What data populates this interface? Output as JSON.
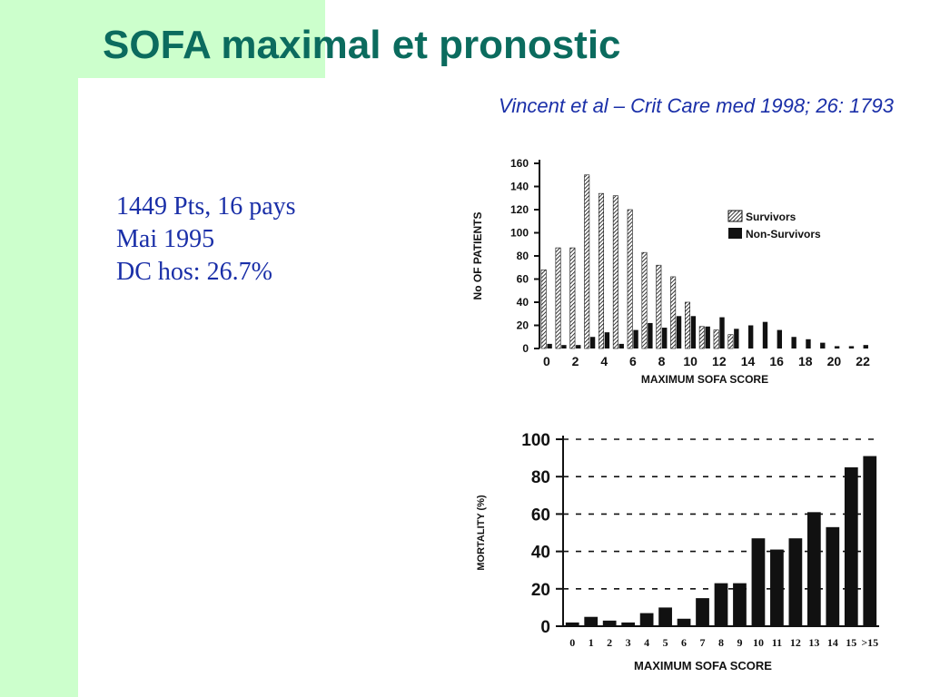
{
  "slide": {
    "title": "SOFA maximal et pronostic",
    "citation": "Vincent et al – Crit Care med 1998; 26: 1793",
    "facts": [
      "1449 Pts, 16 pays",
      "Mai 1995",
      "DC hos: 26.7%"
    ],
    "colors": {
      "background_green": "#ccffcc",
      "title": "#0b6b5e",
      "text_blue": "#1a2fa8",
      "bars": "#111111"
    }
  },
  "chart_data": [
    {
      "type": "bar",
      "title": "",
      "xlabel": "MAXIMUM SOFA SCORE",
      "ylabel": "No OF PATIENTS",
      "x": [
        0,
        1,
        2,
        3,
        4,
        5,
        6,
        7,
        8,
        9,
        10,
        11,
        12,
        13,
        14,
        15,
        16,
        17,
        18,
        19,
        20,
        21,
        22
      ],
      "x_tick_labels": [
        "0",
        "2",
        "4",
        "6",
        "8",
        "10",
        "12",
        "14",
        "16",
        "18",
        "20",
        "22"
      ],
      "x_tick_values": [
        0,
        2,
        4,
        6,
        8,
        10,
        12,
        14,
        16,
        18,
        20,
        22
      ],
      "y_ticks": [
        0,
        20,
        40,
        60,
        80,
        100,
        120,
        140,
        160
      ],
      "ylim": [
        0,
        160
      ],
      "grid": false,
      "legend": "top-right",
      "series": [
        {
          "name": "Survivors",
          "pattern": "hatched",
          "values": [
            68,
            87,
            87,
            150,
            134,
            132,
            120,
            83,
            72,
            62,
            40,
            19,
            16,
            12,
            0,
            0,
            0,
            0,
            0,
            0,
            0,
            0,
            0
          ]
        },
        {
          "name": "Non-Survivors",
          "pattern": "solid",
          "values": [
            4,
            3,
            3,
            10,
            14,
            4,
            16,
            22,
            18,
            28,
            28,
            19,
            27,
            17,
            20,
            23,
            16,
            10,
            8,
            5,
            2,
            2,
            3
          ]
        }
      ]
    },
    {
      "type": "bar",
      "title": "",
      "xlabel": "MAXIMUM SOFA SCORE",
      "ylabel": "MORTALITY (%)",
      "categories": [
        "0",
        "1",
        "2",
        "3",
        "4",
        "5",
        "6",
        "7",
        "8",
        "9",
        "10",
        "11",
        "12",
        "13",
        "14",
        "15",
        ">15"
      ],
      "values": [
        2,
        5,
        3,
        2,
        7,
        10,
        4,
        15,
        23,
        23,
        47,
        41,
        47,
        61,
        53,
        85,
        91
      ],
      "y_ticks": [
        0,
        20,
        40,
        60,
        80,
        100
      ],
      "ylim": [
        0,
        100
      ],
      "grid": true
    }
  ]
}
